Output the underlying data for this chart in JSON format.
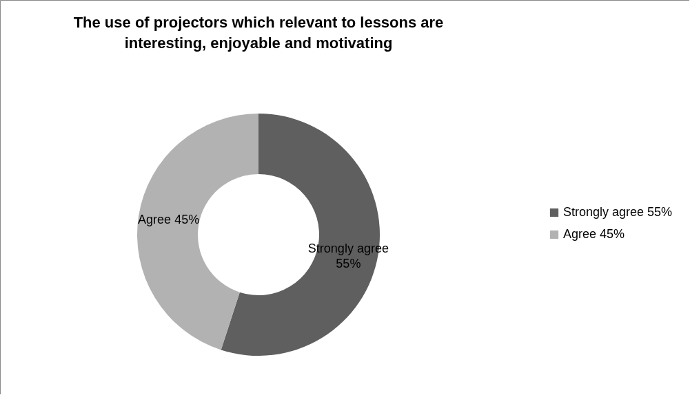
{
  "chart_data": {
    "type": "donut",
    "title": "The use of projectors which relevant to lessons are interesting, enjoyable and motivating",
    "categories": [
      "Strongly agree 55%",
      "Agree 45%"
    ],
    "values": [
      55,
      45
    ],
    "colors": [
      "#5f5f5f",
      "#b2b2b2"
    ],
    "value_labels": [
      "Strongly agree 55%",
      "Agree 45%"
    ],
    "legend": "right"
  }
}
